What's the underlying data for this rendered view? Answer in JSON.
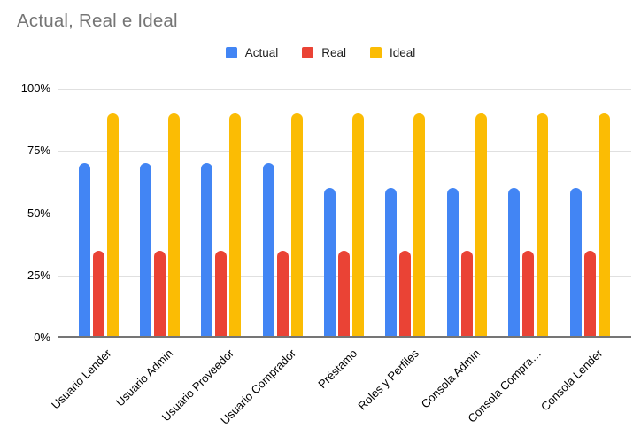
{
  "chart_data": {
    "type": "bar",
    "title": "Actual, Real e Ideal",
    "categories": [
      "Usuario Lender",
      "Usuario Admin",
      "Usuario Proveedor",
      "Usuario Comprador",
      "Préstamo",
      "Roles y Perfiles",
      "Consola Admin",
      "Consola Compra…",
      "Consola Lender"
    ],
    "series": [
      {
        "name": "Actual",
        "color": "#4285F4",
        "values": [
          70,
          70,
          70,
          70,
          60,
          60,
          60,
          60,
          60
        ]
      },
      {
        "name": "Real",
        "color": "#EA4335",
        "values": [
          35,
          35,
          35,
          35,
          35,
          35,
          35,
          35,
          35
        ]
      },
      {
        "name": "Ideal",
        "color": "#FBBC04",
        "values": [
          90,
          90,
          90,
          90,
          90,
          90,
          90,
          90,
          90
        ]
      }
    ],
    "xlabel": "",
    "ylabel": "",
    "y_ticks": [
      "0%",
      "25%",
      "50%",
      "75%",
      "100%"
    ],
    "y_tick_values": [
      0,
      25,
      50,
      75,
      100
    ],
    "ylim": [
      0,
      100
    ],
    "legend_position": "top",
    "grid": true
  },
  "colors": {
    "title": "#757575",
    "axis_label": "#000000",
    "legend_label": "#212121",
    "gridline": "#E0E0E0",
    "baseline": "#757575",
    "background": "#FFFFFF"
  }
}
